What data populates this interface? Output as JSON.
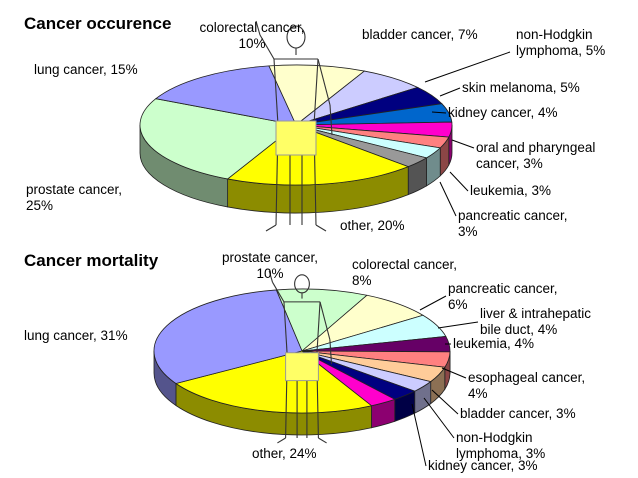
{
  "chart_data": [
    {
      "type": "pie",
      "title": "Cancer occurence",
      "unit": "%",
      "categories": [
        "colorectal cancer",
        "bladder cancer",
        "non-Hodgkin lymphoma",
        "skin melanoma",
        "kidney cancer",
        "oral and pharyngeal cancer",
        "leukemia",
        "pancreatic cancer",
        "other",
        "prostate cancer",
        "lung cancer"
      ],
      "values": [
        10,
        7,
        5,
        5,
        4,
        3,
        3,
        3,
        20,
        25,
        15
      ],
      "colors": [
        "#FFFFCC",
        "#CCCCFF",
        "#000080",
        "#0066CC",
        "#FF00CC",
        "#FF8080",
        "#CCFFFF",
        "#999999",
        "#FFFF00",
        "#CCFFCC",
        "#9999FF"
      ],
      "labels": [
        [
          "colorectal cancer,",
          "10%"
        ],
        [
          "bladder cancer, 7%"
        ],
        [
          "non-Hodgkin",
          "lymphoma, 5%"
        ],
        [
          "skin melanoma, 5%"
        ],
        [
          "kidney cancer, 4%"
        ],
        [
          "oral and pharyngeal",
          "cancer, 3%"
        ],
        [
          "leukemia, 3%"
        ],
        [
          "pancreatic cancer,",
          "3%"
        ],
        [
          "other, 20%"
        ],
        [
          "prostate cancer,",
          "25%"
        ],
        [
          "lung cancer, 15%"
        ]
      ]
    },
    {
      "type": "pie",
      "title": "Cancer mortality",
      "unit": "%",
      "categories": [
        "prostate cancer",
        "colorectal cancer",
        "pancreatic cancer",
        "liver & intrahepatic bile duct",
        "leukemia",
        "esophageal cancer",
        "bladder cancer",
        "non-Hodgkin lymphoma",
        "kidney cancer",
        "other",
        "lung cancer"
      ],
      "values": [
        10,
        8,
        6,
        4,
        4,
        4,
        3,
        3,
        3,
        24,
        31
      ],
      "colors": [
        "#CCFFCC",
        "#FFFFCC",
        "#CCFFFF",
        "#660066",
        "#FF8080",
        "#FFCC99",
        "#CCCCFF",
        "#000080",
        "#FF00CC",
        "#FFFF00",
        "#9999FF"
      ],
      "labels": [
        [
          "prostate cancer,",
          "10%"
        ],
        [
          "colorectal cancer,",
          "8%"
        ],
        [
          "pancreatic cancer,",
          "6%"
        ],
        [
          "liver & intrahepatic",
          "bile duct, 4%"
        ],
        [
          "leukemia, 4%"
        ],
        [
          "esophageal cancer,",
          "4%"
        ],
        [
          "bladder cancer, 3%"
        ],
        [
          "non-Hodgkin",
          "lymphoma, 3%"
        ],
        [
          "kidney cancer, 3%"
        ],
        [
          "other, 24%"
        ],
        [
          "lung cancer, 31%"
        ]
      ]
    }
  ]
}
